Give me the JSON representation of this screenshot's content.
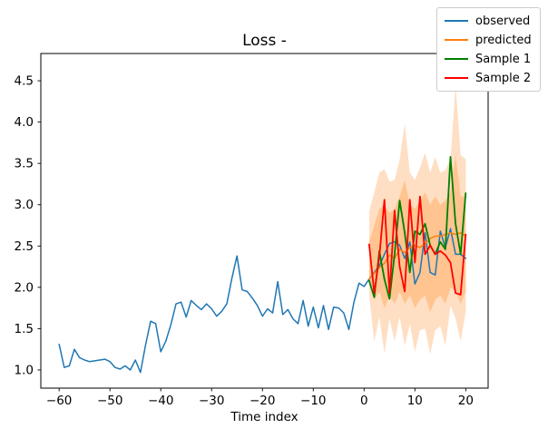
{
  "title": "Loss -",
  "xlabel": "Time index",
  "legend": {
    "entries": [
      {
        "label": "observed",
        "color": "#1f77b4"
      },
      {
        "label": "predicted",
        "color": "#ff7f0e"
      },
      {
        "label": "Sample 1",
        "color": "#008000"
      },
      {
        "label": "Sample 2",
        "color": "#ff0000"
      }
    ]
  },
  "axes": {
    "x_tick_labels": [
      "−60",
      "−50",
      "−40",
      "−30",
      "−20",
      "−10",
      "0",
      "10",
      "20"
    ],
    "x_tick_values": [
      -60,
      -50,
      -40,
      -30,
      -20,
      -10,
      0,
      10,
      20
    ],
    "y_tick_labels": [
      "1.0",
      "1.5",
      "2.0",
      "2.5",
      "3.0",
      "3.5",
      "4.0",
      "4.5"
    ],
    "y_tick_values": [
      1.0,
      1.5,
      2.0,
      2.5,
      3.0,
      3.5,
      4.0,
      4.5
    ],
    "xlim": [
      -63.6,
      24.4
    ],
    "ylim": [
      0.78,
      4.83
    ]
  },
  "chart_data": {
    "type": "line",
    "title": "Loss -",
    "xlabel": "Time index",
    "ylabel": "",
    "grid": false,
    "legend_position": "upper right (outside axes top)",
    "series": [
      {
        "name": "observed",
        "color": "#1f77b4",
        "width": 1.5,
        "x": [
          -60,
          -59,
          -58,
          -57,
          -56,
          -55,
          -54,
          -53,
          -52,
          -51,
          -50,
          -49,
          -48,
          -47,
          -46,
          -45,
          -44,
          -43,
          -42,
          -41,
          -40,
          -39,
          -38,
          -37,
          -36,
          -35,
          -34,
          -33,
          -32,
          -31,
          -30,
          -29,
          -28,
          -27,
          -26,
          -25,
          -24,
          -23,
          -22,
          -21,
          -20,
          -19,
          -18,
          -17,
          -16,
          -15,
          -14,
          -13,
          -12,
          -11,
          -10,
          -9,
          -8,
          -7,
          -6,
          -5,
          -4,
          -3,
          -2,
          -1,
          0,
          1,
          2,
          3,
          4,
          5,
          6,
          7,
          8,
          9,
          10,
          11,
          12,
          13,
          14,
          15,
          16,
          17,
          18,
          19,
          20
        ],
        "values": [
          1.31,
          1.03,
          1.05,
          1.25,
          1.15,
          1.12,
          1.1,
          1.11,
          1.12,
          1.13,
          1.1,
          1.03,
          1.01,
          1.05,
          1.0,
          1.12,
          0.97,
          1.3,
          1.59,
          1.56,
          1.22,
          1.35,
          1.55,
          1.8,
          1.82,
          1.64,
          1.84,
          1.78,
          1.73,
          1.8,
          1.74,
          1.65,
          1.71,
          1.8,
          2.11,
          2.38,
          1.97,
          1.95,
          1.87,
          1.78,
          1.65,
          1.74,
          1.69,
          2.07,
          1.67,
          1.73,
          1.62,
          1.56,
          1.84,
          1.53,
          1.76,
          1.51,
          1.78,
          1.49,
          1.76,
          1.75,
          1.69,
          1.49,
          1.82,
          2.05,
          2.01,
          2.1,
          2.18,
          2.26,
          2.4,
          2.53,
          2.55,
          2.51,
          2.35,
          2.55,
          2.04,
          2.18,
          2.66,
          2.18,
          2.15,
          2.68,
          2.48,
          2.71,
          2.4,
          2.4,
          2.35
        ]
      },
      {
        "name": "predicted",
        "color": "#ff7f0e",
        "width": 1.5,
        "x": [
          1,
          2,
          3,
          4,
          5,
          6,
          7,
          8,
          9,
          10,
          11,
          12,
          13,
          14,
          15,
          16,
          17,
          18,
          19,
          20
        ],
        "values": [
          2.1,
          2.17,
          2.24,
          2.29,
          2.39,
          2.35,
          2.46,
          2.42,
          2.48,
          2.51,
          2.48,
          2.53,
          2.59,
          2.62,
          2.62,
          2.64,
          2.66,
          2.64,
          2.66,
          2.62
        ]
      },
      {
        "name": "Sample 1",
        "color": "#008000",
        "width": 1.8,
        "x": [
          1,
          2,
          3,
          4,
          5,
          6,
          7,
          8,
          9,
          10,
          11,
          12,
          13,
          14,
          15,
          16,
          17,
          18,
          19,
          20
        ],
        "values": [
          2.08,
          1.88,
          2.44,
          2.1,
          1.86,
          2.4,
          3.05,
          2.66,
          2.18,
          2.68,
          2.64,
          2.77,
          2.51,
          2.4,
          2.55,
          2.46,
          3.58,
          2.77,
          2.4,
          3.14
        ]
      },
      {
        "name": "Sample 2",
        "color": "#ff0000",
        "width": 1.8,
        "x": [
          1,
          2,
          3,
          4,
          5,
          6,
          7,
          8,
          9,
          10,
          11,
          12,
          13,
          14,
          15,
          16,
          17,
          18,
          19,
          20
        ],
        "values": [
          2.52,
          1.93,
          2.37,
          3.06,
          1.93,
          2.93,
          2.25,
          1.95,
          3.06,
          2.3,
          3.1,
          2.4,
          2.51,
          2.4,
          2.44,
          2.39,
          2.3,
          1.93,
          1.91,
          2.64
        ]
      }
    ],
    "bands": [
      {
        "name": "uncertainty-outer",
        "color": "#ff7f0e",
        "alpha": 0.25,
        "x": [
          1,
          2,
          3,
          4,
          5,
          6,
          7,
          8,
          9,
          10,
          11,
          12,
          13,
          14,
          15,
          16,
          17,
          18,
          19,
          20
        ],
        "hi": [
          2.92,
          3.15,
          3.39,
          3.43,
          3.28,
          3.3,
          3.55,
          3.98,
          3.39,
          3.3,
          3.45,
          3.63,
          3.39,
          3.58,
          3.39,
          3.42,
          3.55,
          4.45,
          3.6,
          3.55
        ],
        "lo": [
          1.9,
          1.34,
          1.64,
          1.2,
          1.62,
          1.35,
          1.64,
          1.29,
          1.55,
          1.22,
          1.48,
          1.5,
          1.19,
          1.48,
          1.53,
          1.29,
          1.78,
          1.62,
          1.35,
          1.7
        ]
      },
      {
        "name": "uncertainty-inner",
        "color": "#ff7f0e",
        "alpha": 0.28,
        "x": [
          1,
          2,
          3,
          4,
          5,
          6,
          7,
          8,
          9,
          10,
          11,
          12,
          13,
          14,
          15,
          16,
          17,
          18,
          19,
          20
        ],
        "hi": [
          2.55,
          2.75,
          2.95,
          3.0,
          2.9,
          2.95,
          3.1,
          3.3,
          3.0,
          2.95,
          3.05,
          3.15,
          3.0,
          3.1,
          3.0,
          3.05,
          3.15,
          3.6,
          3.1,
          3.1
        ],
        "lo": [
          2.05,
          1.85,
          1.95,
          1.75,
          1.9,
          1.8,
          1.95,
          1.8,
          1.9,
          1.75,
          1.85,
          1.9,
          1.7,
          1.85,
          1.9,
          1.8,
          2.0,
          1.95,
          1.8,
          1.95
        ]
      }
    ]
  }
}
